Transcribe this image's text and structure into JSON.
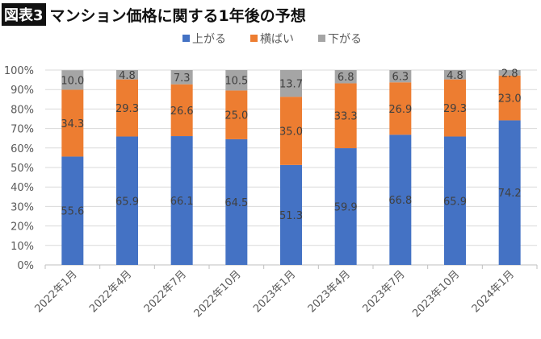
{
  "header": {
    "badge": "図表3",
    "title": "マンション価格に関する1年後の予想"
  },
  "chart_data": {
    "type": "bar",
    "stacked": true,
    "categories": [
      "2022年1月",
      "2022年4月",
      "2022年7月",
      "2022年10月",
      "2023年1月",
      "2023年4月",
      "2023年7月",
      "2023年10月",
      "2024年1月"
    ],
    "series": [
      {
        "name": "上がる",
        "color": "#4472C4",
        "values": [
          55.6,
          65.9,
          66.1,
          64.5,
          51.3,
          59.9,
          66.8,
          65.9,
          74.2
        ]
      },
      {
        "name": "横ばい",
        "color": "#ED7D31",
        "values": [
          34.3,
          29.3,
          26.6,
          25.0,
          35.0,
          33.3,
          26.9,
          29.3,
          23.0
        ]
      },
      {
        "name": "下がる",
        "color": "#A5A5A5",
        "values": [
          10.0,
          4.8,
          7.3,
          10.5,
          13.7,
          6.8,
          6.3,
          4.8,
          2.8
        ]
      }
    ],
    "yticks": [
      "0%",
      "10%",
      "20%",
      "30%",
      "40%",
      "50%",
      "60%",
      "70%",
      "80%",
      "90%",
      "100%"
    ],
    "ylim": [
      0,
      100
    ],
    "grid": true,
    "legend": "top"
  }
}
